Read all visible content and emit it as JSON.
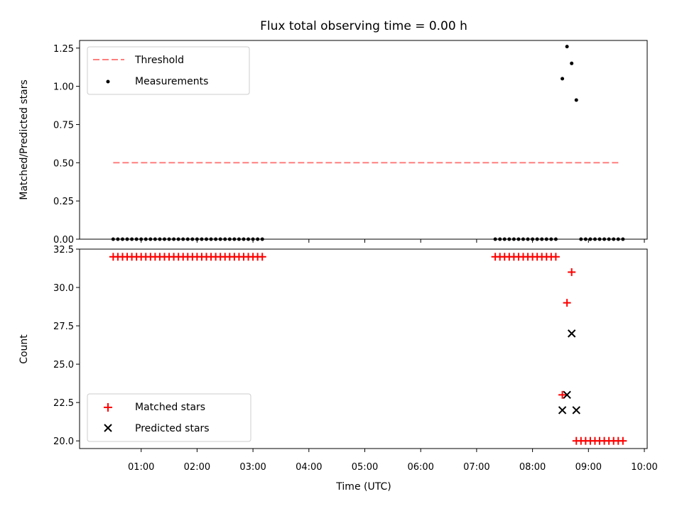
{
  "chart_data": [
    {
      "type": "scatter",
      "title": "Flux total observing time = 0.00 h",
      "xlabel": "",
      "ylabel": "Matched/Predicted stars",
      "ylim": [
        0.0,
        1.3
      ],
      "yticks": [
        "0.00",
        "0.25",
        "0.50",
        "0.75",
        "1.00",
        "1.25"
      ],
      "ytick_values": [
        0.0,
        0.25,
        0.5,
        0.75,
        1.0,
        1.25
      ],
      "legend_position": "top-left",
      "series": [
        {
          "name": "Threshold",
          "kind": "dashed-line",
          "color": "#ff7f7f",
          "x": [
            "00:30",
            "09:35"
          ],
          "values": [
            0.5,
            0.5
          ]
        },
        {
          "name": "Measurements",
          "kind": "dots",
          "color": "#000000",
          "points": [
            [
              "00:30",
              0
            ],
            [
              "00:35",
              0
            ],
            [
              "00:40",
              0
            ],
            [
              "00:45",
              0
            ],
            [
              "00:50",
              0
            ],
            [
              "00:55",
              0
            ],
            [
              "01:00",
              0
            ],
            [
              "01:05",
              0
            ],
            [
              "01:10",
              0
            ],
            [
              "01:15",
              0
            ],
            [
              "01:20",
              0
            ],
            [
              "01:25",
              0
            ],
            [
              "01:30",
              0
            ],
            [
              "01:35",
              0
            ],
            [
              "01:40",
              0
            ],
            [
              "01:45",
              0
            ],
            [
              "01:50",
              0
            ],
            [
              "01:55",
              0
            ],
            [
              "02:00",
              0
            ],
            [
              "02:05",
              0
            ],
            [
              "02:10",
              0
            ],
            [
              "02:15",
              0
            ],
            [
              "02:20",
              0
            ],
            [
              "02:25",
              0
            ],
            [
              "02:30",
              0
            ],
            [
              "02:35",
              0
            ],
            [
              "02:40",
              0
            ],
            [
              "02:45",
              0
            ],
            [
              "02:50",
              0
            ],
            [
              "02:55",
              0
            ],
            [
              "03:00",
              0
            ],
            [
              "03:05",
              0
            ],
            [
              "03:10",
              0
            ],
            [
              "07:20",
              0
            ],
            [
              "07:25",
              0
            ],
            [
              "07:30",
              0
            ],
            [
              "07:35",
              0
            ],
            [
              "07:40",
              0
            ],
            [
              "07:45",
              0
            ],
            [
              "07:50",
              0
            ],
            [
              "07:55",
              0
            ],
            [
              "08:00",
              0
            ],
            [
              "08:05",
              0
            ],
            [
              "08:10",
              0
            ],
            [
              "08:15",
              0
            ],
            [
              "08:20",
              0
            ],
            [
              "08:25",
              0
            ],
            [
              "08:32",
              1.05
            ],
            [
              "08:37",
              1.26
            ],
            [
              "08:42",
              1.15
            ],
            [
              "08:47",
              0.91
            ],
            [
              "08:52",
              0
            ],
            [
              "08:57",
              0
            ],
            [
              "09:02",
              0
            ],
            [
              "09:07",
              0
            ],
            [
              "09:12",
              0
            ],
            [
              "09:17",
              0
            ],
            [
              "09:22",
              0
            ],
            [
              "09:27",
              0
            ],
            [
              "09:32",
              0
            ],
            [
              "09:37",
              0
            ]
          ]
        }
      ]
    },
    {
      "type": "scatter",
      "title": "",
      "xlabel": "Time (UTC)",
      "ylabel": "Count",
      "ylim": [
        19.5,
        32.5
      ],
      "xlim": [
        "00:00",
        "10:00"
      ],
      "yticks": [
        "20.0",
        "22.5",
        "25.0",
        "27.5",
        "30.0",
        "32.5"
      ],
      "ytick_values": [
        20.0,
        22.5,
        25.0,
        27.5,
        30.0,
        32.5
      ],
      "xticks": [
        "01:00",
        "02:00",
        "03:00",
        "04:00",
        "05:00",
        "06:00",
        "07:00",
        "08:00",
        "09:00",
        "10:00"
      ],
      "legend_position": "bottom-left",
      "series": [
        {
          "name": "Matched stars",
          "kind": "plus",
          "color": "#ff0000",
          "points": [
            [
              "00:30",
              32
            ],
            [
              "00:35",
              32
            ],
            [
              "00:40",
              32
            ],
            [
              "00:45",
              32
            ],
            [
              "00:50",
              32
            ],
            [
              "00:55",
              32
            ],
            [
              "01:00",
              32
            ],
            [
              "01:05",
              32
            ],
            [
              "01:10",
              32
            ],
            [
              "01:15",
              32
            ],
            [
              "01:20",
              32
            ],
            [
              "01:25",
              32
            ],
            [
              "01:30",
              32
            ],
            [
              "01:35",
              32
            ],
            [
              "01:40",
              32
            ],
            [
              "01:45",
              32
            ],
            [
              "01:50",
              32
            ],
            [
              "01:55",
              32
            ],
            [
              "02:00",
              32
            ],
            [
              "02:05",
              32
            ],
            [
              "02:10",
              32
            ],
            [
              "02:15",
              32
            ],
            [
              "02:20",
              32
            ],
            [
              "02:25",
              32
            ],
            [
              "02:30",
              32
            ],
            [
              "02:35",
              32
            ],
            [
              "02:40",
              32
            ],
            [
              "02:45",
              32
            ],
            [
              "02:50",
              32
            ],
            [
              "02:55",
              32
            ],
            [
              "03:00",
              32
            ],
            [
              "03:05",
              32
            ],
            [
              "03:10",
              32
            ],
            [
              "07:20",
              32
            ],
            [
              "07:25",
              32
            ],
            [
              "07:30",
              32
            ],
            [
              "07:35",
              32
            ],
            [
              "07:40",
              32
            ],
            [
              "07:45",
              32
            ],
            [
              "07:50",
              32
            ],
            [
              "07:55",
              32
            ],
            [
              "08:00",
              32
            ],
            [
              "08:05",
              32
            ],
            [
              "08:10",
              32
            ],
            [
              "08:15",
              32
            ],
            [
              "08:20",
              32
            ],
            [
              "08:25",
              32
            ],
            [
              "08:32",
              23
            ],
            [
              "08:37",
              29
            ],
            [
              "08:42",
              31
            ],
            [
              "08:47",
              20
            ],
            [
              "08:52",
              20
            ],
            [
              "08:57",
              20
            ],
            [
              "09:02",
              20
            ],
            [
              "09:07",
              20
            ],
            [
              "09:12",
              20
            ],
            [
              "09:17",
              20
            ],
            [
              "09:22",
              20
            ],
            [
              "09:27",
              20
            ],
            [
              "09:32",
              20
            ],
            [
              "09:37",
              20
            ]
          ]
        },
        {
          "name": "Predicted stars",
          "kind": "x",
          "color": "#000000",
          "points": [
            [
              "08:32",
              22
            ],
            [
              "08:37",
              23
            ],
            [
              "08:42",
              27
            ],
            [
              "08:47",
              22
            ]
          ]
        }
      ]
    }
  ]
}
